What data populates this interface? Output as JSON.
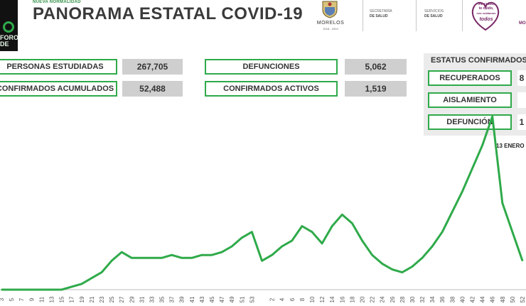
{
  "header": {
    "kicker": "NUEVA NORMALIDAD",
    "title": "PANORAMA ESTATAL COVID-19",
    "logo_left_line1": "FORO",
    "logo_left_line2": "DE",
    "morelos": "MORELOS",
    "period": "2018 - 2024",
    "dept1_line1": "SECRETARÍA",
    "dept1_line2": "DE SALUD",
    "dept2_line1": "SERVICIOS",
    "dept2_line2": "DE SALUD",
    "campaign_line1": "me cuido,",
    "campaign_line2": "te cuido,",
    "campaign_line3": "nos cuidamos",
    "campaign_line4": "todos",
    "edge_text": "MO"
  },
  "stats": {
    "personas_label": "PERSONAS ESTUDIADAS",
    "personas_value": "267,705",
    "confirmados_label": "CONFIRMADOS ACUMULADOS",
    "confirmados_value": "52,488",
    "defunciones_label": "DEFUNCIONES",
    "defunciones_value": "5,062",
    "activos_label": "CONFIRMADOS ACTIVOS",
    "activos_value": "1,519"
  },
  "status": {
    "title": "ESTATUS CONFIRMADOS",
    "recuperados_label": "RECUPERADOS",
    "recuperados_value": "8",
    "aislamiento_label": "AISLAMIENTO",
    "aislamiento_value": "",
    "defuncion_label": "DEFUNCIÓN",
    "defuncion_value": "1"
  },
  "date": "13 ENERO",
  "colors": {
    "accent": "#2faa4a",
    "value_bg": "#cfcfcf",
    "panel_bg": "#ebebeb"
  },
  "chart_data": {
    "type": "line",
    "x": [
      "3",
      "5",
      "7",
      "9",
      "11",
      "13",
      "15",
      "17",
      "19",
      "21",
      "23",
      "25",
      "27",
      "29",
      "31",
      "33",
      "35",
      "37",
      "39",
      "41",
      "43",
      "45",
      "47",
      "49",
      "51",
      "53",
      "1",
      "2",
      "4",
      "6",
      "8",
      "10",
      "12",
      "14",
      "16",
      "18",
      "20",
      "22",
      "24",
      "26",
      "28",
      "30",
      "32",
      "34",
      "36",
      "38",
      "40",
      "42",
      "44",
      "46",
      "48",
      "50",
      "52"
    ],
    "tick_labels": [
      "3",
      "5",
      "7",
      "9",
      "11",
      "13",
      "15",
      "17",
      "19",
      "21",
      "23",
      "25",
      "27",
      "29",
      "31",
      "33",
      "35",
      "37",
      "39",
      "41",
      "43",
      "45",
      "47",
      "49",
      "51",
      "53",
      "2",
      "4",
      "6",
      "8",
      "10",
      "12",
      "14",
      "16",
      "18",
      "20",
      "22",
      "24",
      "26",
      "28",
      "30",
      "32",
      "34",
      "36",
      "38",
      "40",
      "42",
      "44",
      "46",
      "48",
      "50",
      "52"
    ],
    "series": [
      {
        "values": [
          0,
          0,
          0,
          0,
          0,
          0,
          0,
          0.01,
          0.02,
          0.04,
          0.06,
          0.1,
          0.13,
          0.11,
          0.11,
          0.11,
          0.11,
          0.12,
          0.11,
          0.11,
          0.12,
          0.12,
          0.13,
          0.15,
          0.18,
          0.2,
          0.1,
          0.12,
          0.15,
          0.17,
          0.22,
          0.2,
          0.16,
          0.22,
          0.26,
          0.23,
          0.17,
          0.12,
          0.09,
          0.07,
          0.06,
          0.08,
          0.11,
          0.15,
          0.2,
          0.27,
          0.34,
          0.42,
          0.5,
          0.6,
          0.3,
          0.2,
          0.1
        ]
      }
    ],
    "xlabel": "",
    "ylabel": ""
  }
}
